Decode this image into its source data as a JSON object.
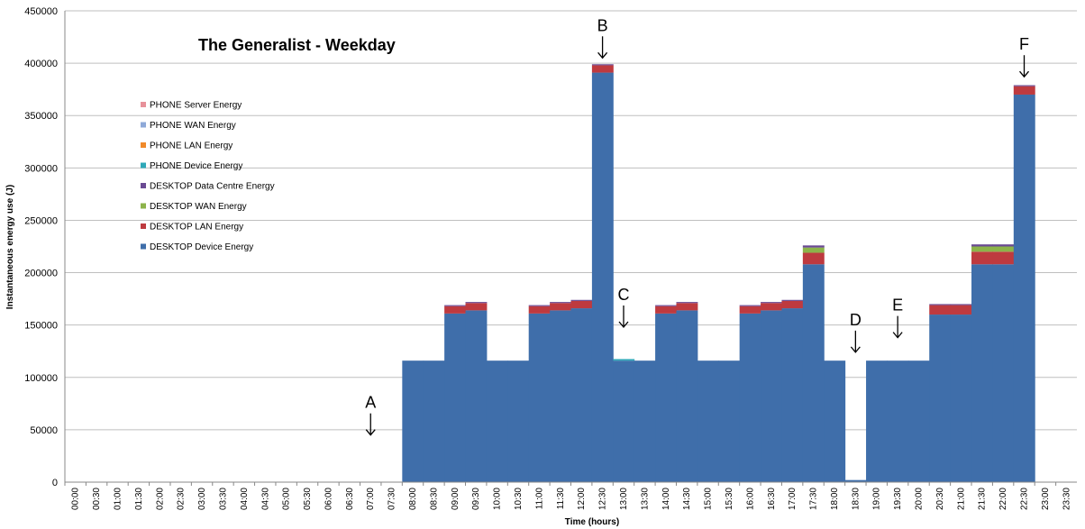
{
  "chart_data": {
    "type": "bar",
    "title": "The Generalist - Weekday",
    "xlabel": "Time (hours)",
    "ylabel": "Instantaneous energy use (J)",
    "ylim": [
      0,
      450000
    ],
    "yticks": [
      0,
      50000,
      100000,
      150000,
      200000,
      250000,
      300000,
      350000,
      400000,
      450000
    ],
    "ytick_labels": [
      "0",
      "50000",
      "100000",
      "150000",
      "200000",
      "250000",
      "300000",
      "350000",
      "400000",
      "450000"
    ],
    "grid": "horizontal",
    "legend_position": "left",
    "categories": [
      "00:00",
      "00:30",
      "01:00",
      "01:30",
      "02:00",
      "02:30",
      "03:00",
      "03:30",
      "04:00",
      "04:30",
      "05:00",
      "05:30",
      "06:00",
      "06:30",
      "07:00",
      "07:30",
      "08:00",
      "08:30",
      "09:00",
      "09:30",
      "10:00",
      "10:30",
      "11:00",
      "11:30",
      "12:00",
      "12:30",
      "13:00",
      "13:30",
      "14:00",
      "14:30",
      "15:00",
      "15:30",
      "16:00",
      "16:30",
      "17:00",
      "17:30",
      "18:00",
      "18:30",
      "19:00",
      "19:30",
      "20:00",
      "20:30",
      "21:00",
      "21:30",
      "22:00",
      "22:30",
      "23:00",
      "23:30"
    ],
    "series": [
      {
        "name": "DESKTOP Device Energy",
        "color": "#3F6EAA",
        "values": [
          0,
          0,
          0,
          0,
          0,
          0,
          0,
          0,
          0,
          0,
          0,
          0,
          0,
          0,
          0,
          0,
          116000,
          116000,
          161000,
          164000,
          116000,
          116000,
          161000,
          164000,
          166000,
          391000,
          116000,
          116000,
          161000,
          164000,
          116000,
          116000,
          161000,
          164000,
          166000,
          208000,
          116000,
          2000,
          116000,
          116000,
          116000,
          160000,
          160000,
          208000,
          208000,
          370000,
          0,
          0
        ]
      },
      {
        "name": "DESKTOP LAN Energy",
        "color": "#BE3A3F",
        "values": [
          0,
          0,
          0,
          0,
          0,
          0,
          0,
          0,
          0,
          0,
          0,
          0,
          0,
          0,
          0,
          0,
          0,
          0,
          7000,
          7000,
          0,
          0,
          7000,
          7000,
          7000,
          7000,
          0,
          0,
          7000,
          7000,
          0,
          0,
          7000,
          7000,
          7000,
          11000,
          0,
          0,
          0,
          0,
          0,
          9000,
          9000,
          12000,
          12000,
          8000,
          0,
          0
        ]
      },
      {
        "name": "DESKTOP WAN Energy",
        "color": "#8CB34A",
        "values": [
          0,
          0,
          0,
          0,
          0,
          0,
          0,
          0,
          0,
          0,
          0,
          0,
          0,
          0,
          0,
          0,
          0,
          0,
          0,
          0,
          0,
          0,
          0,
          0,
          0,
          0,
          0,
          0,
          0,
          0,
          0,
          0,
          0,
          0,
          0,
          5000,
          0,
          0,
          0,
          0,
          0,
          0,
          0,
          5000,
          5000,
          0,
          0,
          0
        ]
      },
      {
        "name": "DESKTOP Data Centre Energy",
        "color": "#6A4A93",
        "values": [
          0,
          0,
          0,
          0,
          0,
          0,
          0,
          0,
          0,
          0,
          0,
          0,
          0,
          0,
          0,
          0,
          0,
          0,
          1000,
          1000,
          0,
          0,
          1000,
          1000,
          1000,
          1000,
          0,
          0,
          1000,
          1000,
          0,
          0,
          1000,
          1000,
          1000,
          2000,
          0,
          0,
          0,
          0,
          0,
          1000,
          1000,
          2000,
          2000,
          1000,
          0,
          0
        ]
      },
      {
        "name": "PHONE Device Energy",
        "color": "#2EA8B8",
        "values": [
          0,
          0,
          0,
          0,
          0,
          0,
          0,
          0,
          0,
          0,
          0,
          0,
          0,
          0,
          0,
          0,
          0,
          0,
          0,
          0,
          0,
          0,
          0,
          0,
          0,
          0,
          1500,
          0,
          0,
          0,
          0,
          0,
          0,
          0,
          0,
          0,
          0,
          0,
          0,
          0,
          0,
          0,
          0,
          0,
          0,
          0,
          0,
          0
        ]
      },
      {
        "name": "PHONE LAN Energy",
        "color": "#F08A2A",
        "values": [
          0,
          0,
          0,
          0,
          0,
          0,
          0,
          0,
          0,
          0,
          0,
          0,
          0,
          0,
          0,
          0,
          0,
          0,
          0,
          0,
          0,
          0,
          0,
          0,
          0,
          0,
          0,
          0,
          0,
          0,
          0,
          0,
          0,
          0,
          0,
          0,
          0,
          0,
          0,
          0,
          0,
          0,
          0,
          0,
          0,
          0,
          0,
          0
        ]
      },
      {
        "name": "PHONE WAN Energy",
        "color": "#8EA9D8",
        "values": [
          0,
          0,
          0,
          0,
          0,
          0,
          0,
          0,
          0,
          0,
          0,
          0,
          0,
          0,
          0,
          0,
          0,
          0,
          0,
          0,
          0,
          0,
          0,
          0,
          0,
          0,
          0,
          0,
          0,
          0,
          0,
          0,
          0,
          0,
          0,
          0,
          0,
          0,
          0,
          0,
          0,
          0,
          0,
          0,
          0,
          0,
          0,
          0
        ]
      },
      {
        "name": "PHONE Server Energy",
        "color": "#E7919A",
        "values": [
          0,
          0,
          0,
          0,
          0,
          0,
          0,
          0,
          0,
          0,
          0,
          0,
          0,
          0,
          0,
          0,
          0,
          0,
          0,
          0,
          0,
          0,
          0,
          0,
          0,
          0,
          0,
          0,
          0,
          0,
          0,
          0,
          0,
          0,
          0,
          0,
          0,
          0,
          0,
          0,
          0,
          0,
          0,
          0,
          0,
          0,
          0,
          0
        ]
      }
    ],
    "legend_order": [
      "PHONE Server Energy",
      "PHONE WAN Energy",
      "PHONE LAN Energy",
      "PHONE Device Energy",
      "DESKTOP Data Centre Energy",
      "DESKTOP WAN Energy",
      "DESKTOP LAN Energy",
      "DESKTOP Device Energy"
    ],
    "annotations": [
      {
        "label": "A",
        "category": "07:00",
        "y": 45000
      },
      {
        "label": "B",
        "category": "12:30",
        "y": 405000
      },
      {
        "label": "C",
        "category": "13:00",
        "y": 148000
      },
      {
        "label": "D",
        "category": "18:30",
        "y": 124000
      },
      {
        "label": "E",
        "category": "19:30",
        "y": 138000
      },
      {
        "label": "F",
        "category": "22:30",
        "y": 387000
      }
    ]
  }
}
